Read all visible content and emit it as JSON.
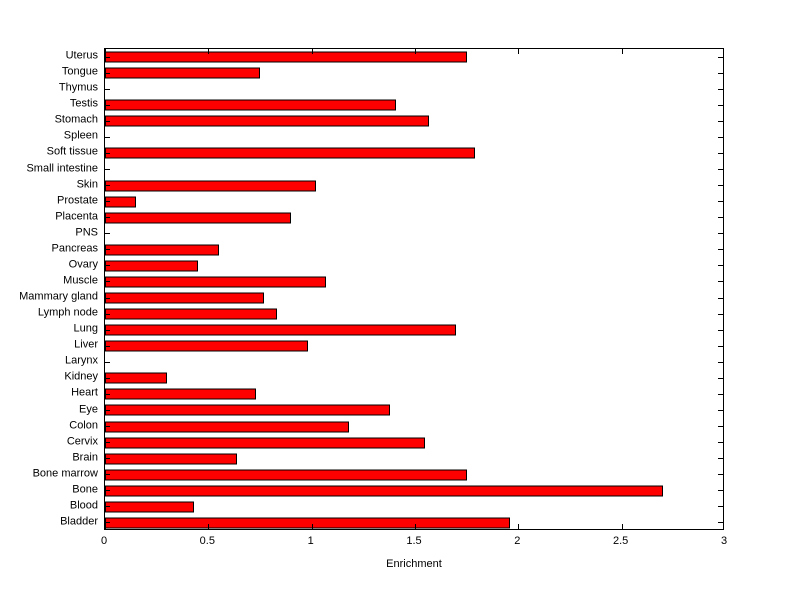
{
  "chart_data": {
    "type": "bar",
    "orientation": "horizontal",
    "title": "",
    "xlabel": "Enrichment",
    "ylabel": "",
    "xlim": [
      0,
      3
    ],
    "xtick_labels": [
      "0",
      "0.5",
      "1",
      "1.5",
      "2",
      "2.5",
      "3"
    ],
    "xtick_values": [
      0,
      0.5,
      1,
      1.5,
      2,
      2.5,
      3
    ],
    "grid": false,
    "legend": null,
    "bar_color": "#ff0000",
    "bar_edge_color": "#000000",
    "categories": [
      "Uterus",
      "Tongue",
      "Thymus",
      "Testis",
      "Stomach",
      "Spleen",
      "Soft tissue",
      "Small intestine",
      "Skin",
      "Prostate",
      "Placenta",
      "PNS",
      "Pancreas",
      "Ovary",
      "Muscle",
      "Mammary gland",
      "Lymph node",
      "Lung",
      "Liver",
      "Larynx",
      "Kidney",
      "Heart",
      "Eye",
      "Colon",
      "Cervix",
      "Brain",
      "Bone marrow",
      "Bone",
      "Blood",
      "Bladder"
    ],
    "values": [
      1.75,
      0.75,
      0,
      1.41,
      1.57,
      0,
      1.79,
      0,
      1.02,
      0.15,
      0.9,
      0,
      0.55,
      0.45,
      1.07,
      0.77,
      0.83,
      1.7,
      0.98,
      0,
      0.3,
      0.73,
      1.38,
      1.18,
      1.55,
      0.64,
      1.75,
      2.7,
      0.43,
      1.96
    ]
  }
}
